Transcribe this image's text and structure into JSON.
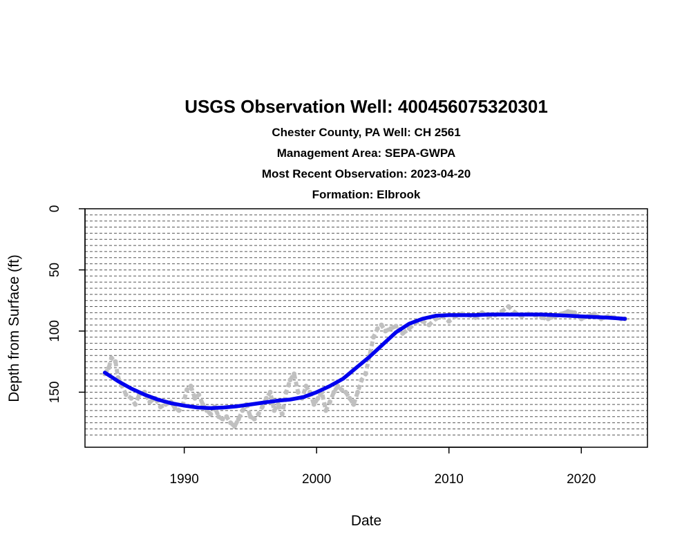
{
  "chart_data": {
    "type": "line",
    "title": "USGS Observation Well:  400456075320301",
    "subtitles": [
      "Chester County, PA   Well: CH 2561",
      "Management Area: SEPA-GWPA",
      "Most Recent Observation: 2023-04-20",
      "Formation: Elbrook"
    ],
    "xlabel": "Date",
    "ylabel": "Depth from Surface (ft)",
    "xlim": [
      1982.5,
      2025.0
    ],
    "ylim": [
      0,
      195
    ],
    "y_reversed": true,
    "x_ticks": [
      1990,
      2000,
      2010,
      2020
    ],
    "y_ticks": [
      0,
      50,
      100,
      150
    ],
    "grid": {
      "horizontal": true,
      "step": 5,
      "range": [
        0,
        185
      ],
      "style": "dashed"
    },
    "colors": {
      "observations": "#c0c0c0",
      "trend": "#0000ee",
      "grid": "#555555"
    },
    "series": [
      {
        "role": "observations",
        "x": [
          1984.0,
          1984.3,
          1984.5,
          1984.8,
          1985.0,
          1985.3,
          1985.6,
          1986.0,
          1986.3,
          1986.6,
          1987.0,
          1987.4,
          1987.8,
          1988.2,
          1988.6,
          1989.0,
          1989.3,
          1989.6,
          1989.9,
          1990.2,
          1990.5,
          1990.8,
          1991.1,
          1991.4,
          1991.7,
          1992.0,
          1992.3,
          1992.6,
          1992.9,
          1993.2,
          1993.5,
          1993.8,
          1994.1,
          1994.4,
          1994.7,
          1995.0,
          1995.3,
          1995.6,
          1995.9,
          1996.2,
          1996.5,
          1996.8,
          1997.1,
          1997.4,
          1997.7,
          1998.0,
          1998.3,
          1998.6,
          1998.9,
          1999.2,
          1999.5,
          1999.8,
          2000.1,
          2000.4,
          2000.7,
          2001.0,
          2001.3,
          2001.6,
          2001.9,
          2002.2,
          2002.5,
          2002.8,
          2003.1,
          2003.4,
          2003.7,
          2004.0,
          2004.3,
          2004.6,
          2004.9,
          2005.2,
          2005.6,
          2006.0,
          2006.5,
          2007.0,
          2007.5,
          2008.0,
          2008.5,
          2009.0,
          2009.5,
          2010.0,
          2010.5,
          2011.0,
          2011.5,
          2012.0,
          2012.5,
          2013.0,
          2013.5,
          2014.0,
          2014.5,
          2015.0,
          2015.5,
          2016.0,
          2016.5,
          2017.0,
          2017.5,
          2018.0,
          2018.5,
          2019.0,
          2019.5,
          2020.0,
          2020.5,
          2021.0,
          2021.5,
          2022.0,
          2022.5,
          2023.0,
          2023.3
        ],
        "values": [
          135,
          130,
          122,
          125,
          138,
          145,
          152,
          155,
          160,
          152,
          150,
          158,
          155,
          162,
          160,
          158,
          163,
          165,
          160,
          148,
          145,
          155,
          152,
          160,
          165,
          168,
          162,
          170,
          172,
          170,
          175,
          178,
          172,
          165,
          160,
          170,
          172,
          168,
          162,
          155,
          150,
          165,
          160,
          168,
          150,
          140,
          135,
          150,
          155,
          145,
          150,
          160,
          155,
          150,
          165,
          158,
          150,
          145,
          148,
          150,
          155,
          160,
          150,
          140,
          135,
          120,
          105,
          98,
          95,
          100,
          98,
          96,
          102,
          98,
          93,
          92,
          95,
          90,
          88,
          92,
          88,
          86,
          87,
          89,
          85,
          88,
          87,
          84,
          80,
          85,
          88,
          86,
          87,
          89,
          90,
          88,
          86,
          84,
          85,
          90,
          88,
          86,
          90,
          88,
          89,
          90,
          90
        ]
      },
      {
        "role": "trend",
        "x": [
          1984.0,
          1985.0,
          1986.0,
          1987.0,
          1988.0,
          1989.0,
          1990.0,
          1991.0,
          1992.0,
          1993.0,
          1994.0,
          1995.0,
          1996.0,
          1997.0,
          1998.0,
          1999.0,
          2000.0,
          2001.0,
          2002.0,
          2003.0,
          2004.0,
          2005.0,
          2006.0,
          2007.0,
          2008.0,
          2009.0,
          2010.0,
          2011.0,
          2012.0,
          2013.0,
          2014.0,
          2015.0,
          2016.0,
          2017.0,
          2018.0,
          2019.0,
          2020.0,
          2021.0,
          2022.0,
          2023.3
        ],
        "values": [
          134,
          141,
          147,
          152,
          156,
          159,
          161,
          162.5,
          163,
          162.5,
          161.5,
          160,
          158.5,
          157,
          156,
          154,
          150,
          145,
          139,
          130,
          121,
          111,
          101,
          94,
          90,
          87.5,
          87,
          87,
          87,
          86.5,
          86.5,
          86.5,
          86.5,
          86.5,
          87,
          87.5,
          88,
          88.5,
          89,
          90
        ]
      }
    ]
  }
}
